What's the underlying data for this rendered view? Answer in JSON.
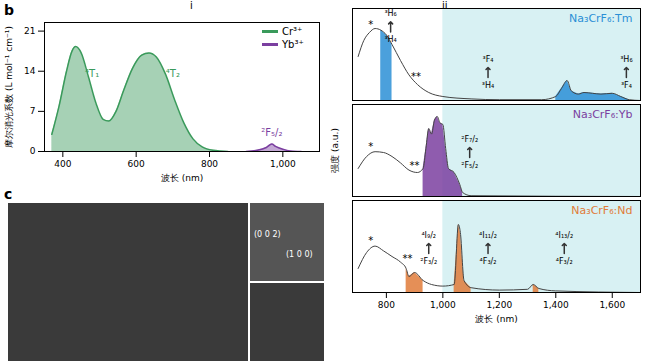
{
  "chart_data": [
    {
      "type": "area",
      "xlabel": "波长 (nm)",
      "ylabel": "摩尔消光系数 (L mol⁻¹ cm⁻¹)",
      "xlim": [
        350,
        1100
      ],
      "xticks": [
        400,
        600,
        800,
        1000
      ],
      "ylim": [
        0,
        22.5
      ],
      "yticks": [
        0,
        7,
        14,
        21
      ],
      "legend": "top-right",
      "series": [
        {
          "name": "Cr³⁺",
          "color": "#3a9a5b",
          "x": [
            370,
            390,
            410,
            425,
            435,
            450,
            470,
            490,
            510,
            525,
            545,
            565,
            590,
            615,
            635,
            655,
            680,
            705,
            730,
            755,
            780,
            810,
            850
          ],
          "values": [
            3,
            8,
            14,
            17.5,
            18.3,
            17.2,
            13,
            8.5,
            5.6,
            5.3,
            7,
            10.5,
            14.5,
            16.8,
            17.2,
            16.5,
            13.5,
            9,
            5,
            2.2,
            0.8,
            0.2,
            0
          ]
        },
        {
          "name": "Yb³⁺",
          "color": "#7b3fa0",
          "x": [
            900,
            930,
            955,
            970,
            980,
            1000,
            1020,
            1050
          ],
          "values": [
            0,
            0.2,
            0.7,
            1.3,
            0.9,
            0.4,
            0.1,
            0
          ]
        }
      ],
      "annotations": [
        {
          "text": "⁴T₁",
          "x": 480,
          "y": 13.5,
          "color": "#3a9a5b"
        },
        {
          "text": "⁴T₂",
          "x": 700,
          "y": 13.5,
          "color": "#3a9a5b"
        },
        {
          "text": "²F₅/₂",
          "x": 970,
          "y": 3.2,
          "color": "#7b3fa0"
        }
      ]
    },
    {
      "type": "line",
      "title": "Na₃CrF₆:Tm",
      "color": "#2b8fd6",
      "tick_labels": false,
      "xlim": [
        680,
        1700
      ],
      "xticks": [
        800,
        1000,
        1200,
        1400,
        1600
      ],
      "ylim": [
        0,
        1.15
      ],
      "shaded_range": [
        1000,
        1700
      ],
      "x": [
        700,
        720,
        740,
        760,
        780,
        800,
        820,
        850,
        880,
        910,
        950,
        1000,
        1100,
        1200,
        1350,
        1400,
        1420,
        1440,
        1455,
        1480,
        1500,
        1530,
        1560,
        1600,
        1630,
        1660,
        1700
      ],
      "values": [
        0.55,
        0.75,
        0.85,
        0.9,
        0.88,
        0.82,
        0.7,
        0.5,
        0.32,
        0.2,
        0.1,
        0.05,
        0.02,
        0.01,
        0.01,
        0.05,
        0.15,
        0.25,
        0.12,
        0.08,
        0.1,
        0.09,
        0.08,
        0.09,
        0.05,
        0.01,
        0
      ],
      "bands": [
        [
          780,
          830
        ],
        [
          1380,
          1660
        ]
      ],
      "stars": [
        {
          "text": "*",
          "x": 745,
          "y": 0.95
        },
        {
          "text": "**",
          "x": 905,
          "y": 0.3
        }
      ],
      "transitions": [
        {
          "upper": "³H₆",
          "lower": "³H₄",
          "x": 815,
          "y": 0.92
        },
        {
          "upper": "³F₄",
          "lower": "³H₄",
          "x": 1160,
          "y": 0.35
        },
        {
          "upper": "³H₆",
          "lower": "³F₄",
          "x": 1650,
          "y": 0.35
        }
      ]
    },
    {
      "type": "line",
      "title": "Na₃CrF₆:Yb",
      "color": "#7b3fa0",
      "tick_labels": false,
      "ylabel": "强度 (a.u.)",
      "xlim": [
        680,
        1700
      ],
      "xticks": [
        800,
        1000,
        1200,
        1400,
        1600
      ],
      "ylim": [
        0,
        1.15
      ],
      "shaded_range": [
        1000,
        1700
      ],
      "x": [
        700,
        730,
        760,
        790,
        820,
        850,
        880,
        910,
        930,
        940,
        950,
        960,
        970,
        980,
        990,
        1000,
        1010,
        1020,
        1040,
        1060,
        1070,
        1100,
        1700
      ],
      "values": [
        0.35,
        0.5,
        0.56,
        0.55,
        0.5,
        0.42,
        0.33,
        0.3,
        0.35,
        0.6,
        0.85,
        0.78,
        0.95,
        1.0,
        0.92,
        0.9,
        0.6,
        0.35,
        0.3,
        0.15,
        0.05,
        0.01,
        0
      ],
      "bands": [
        [
          930,
          1075
        ]
      ],
      "stars": [
        {
          "text": "*",
          "x": 745,
          "y": 0.62
        },
        {
          "text": "**",
          "x": 900,
          "y": 0.38
        }
      ],
      "transitions": [
        {
          "upper": "²F₇/₂",
          "lower": "²F₅/₂",
          "x": 1095,
          "y": 0.55
        }
      ]
    },
    {
      "type": "line",
      "title": "Na₃CrF₆:Nd",
      "color": "#e07b39",
      "tick_labels": "x",
      "xlabel": "波长 (nm)",
      "xlim": [
        680,
        1700
      ],
      "xticks": [
        800,
        1000,
        1200,
        1400,
        1600
      ],
      "ylim": [
        0,
        1.15
      ],
      "shaded_range": [
        1000,
        1700
      ],
      "x": [
        700,
        730,
        760,
        790,
        820,
        850,
        870,
        880,
        900,
        930,
        960,
        1000,
        1040,
        1055,
        1062,
        1075,
        1100,
        1200,
        1300,
        1320,
        1340,
        1400,
        1700
      ],
      "values": [
        0.3,
        0.5,
        0.58,
        0.52,
        0.45,
        0.38,
        0.3,
        0.2,
        0.25,
        0.15,
        0.1,
        0.08,
        0.1,
        0.85,
        0.75,
        0.15,
        0.06,
        0.03,
        0.04,
        0.1,
        0.05,
        0.02,
        0
      ],
      "bands": [
        [
          870,
          930
        ],
        [
          1040,
          1100
        ],
        [
          1305,
          1350
        ]
      ],
      "stars": [
        {
          "text": "*",
          "x": 745,
          "y": 0.65
        },
        {
          "text": "**",
          "x": 875,
          "y": 0.42
        }
      ],
      "transitions": [
        {
          "upper": "⁴I₉/₂",
          "lower": "²F₃/₂",
          "x": 950,
          "y": 0.55
        },
        {
          "upper": "⁴I₁₁/₂",
          "lower": "⁴F₃/₂",
          "x": 1160,
          "y": 0.55
        },
        {
          "upper": "⁴I₁₃/₂",
          "lower": "⁴F₃/₂",
          "x": 1430,
          "y": 0.55
        }
      ]
    }
  ],
  "panel_labels": [
    "b",
    "c"
  ],
  "column_labels": [
    "i",
    "ii"
  ],
  "micrograph": {
    "planes": [
      "(0 0 2)",
      "(1 0 0)"
    ]
  }
}
